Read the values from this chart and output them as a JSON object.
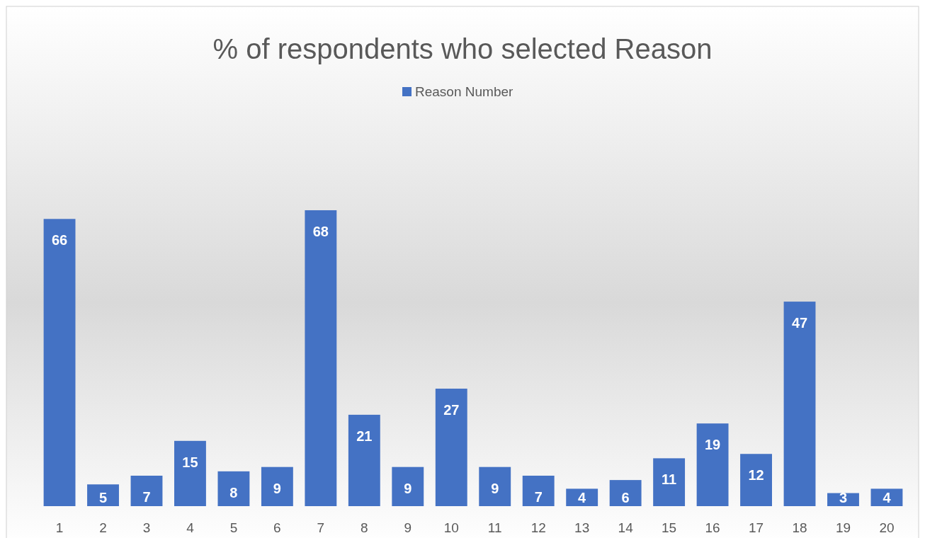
{
  "chart_data": {
    "type": "bar",
    "title": "% of respondents who selected Reason",
    "categories": [
      "1",
      "2",
      "3",
      "4",
      "5",
      "6",
      "7",
      "8",
      "9",
      "10",
      "11",
      "12",
      "13",
      "14",
      "15",
      "16",
      "17",
      "18",
      "19",
      "20"
    ],
    "series": [
      {
        "name": "Reason Number",
        "color": "#4472c4",
        "values": [
          66,
          5,
          7,
          15,
          8,
          9,
          68,
          21,
          9,
          27,
          9,
          7,
          4,
          6,
          11,
          19,
          12,
          47,
          3,
          4
        ]
      }
    ],
    "data_labels": true,
    "legend": "top"
  }
}
